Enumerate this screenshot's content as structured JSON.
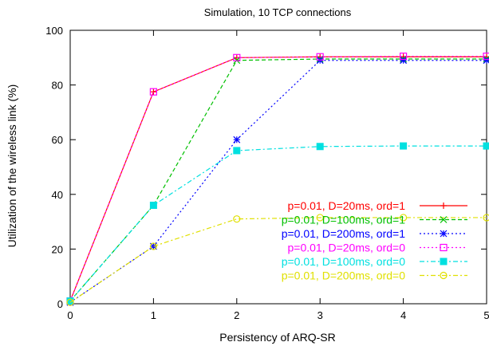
{
  "chart_data": {
    "type": "line",
    "title": "Simulation, 10 TCP connections",
    "xlabel": "Persistency of ARQ-SR",
    "ylabel": "Utilization of the wireless link (%)",
    "xlim": [
      0,
      5
    ],
    "ylim": [
      0,
      100
    ],
    "xticks": [
      0,
      1,
      2,
      3,
      4,
      5
    ],
    "yticks": [
      0,
      20,
      40,
      60,
      80,
      100
    ],
    "grid": false,
    "legend_position": "bottom-right",
    "x": [
      0,
      1,
      2,
      3,
      4,
      5
    ],
    "series": [
      {
        "name": "p=0.01, D=20ms, ord=1",
        "values": [
          1,
          77.5,
          90,
          90.3,
          90.3,
          90.3
        ],
        "color": "#ff0000",
        "dash": "solid",
        "marker": "plus"
      },
      {
        "name": "p=0.01, D=100ms, ord=1",
        "values": [
          1,
          36,
          89,
          89.5,
          89.5,
          89.5
        ],
        "color": "#00c000",
        "dash": "dashed",
        "marker": "x"
      },
      {
        "name": "p=0.01, D=200ms, ord=1",
        "values": [
          0.5,
          21,
          60,
          89,
          89,
          89
        ],
        "color": "#0000ff",
        "dash": "dotted",
        "marker": "star"
      },
      {
        "name": "p=0.01, D=20ms, ord=0",
        "values": [
          1,
          77.5,
          90,
          90.3,
          90.5,
          90.5
        ],
        "color": "#ff00ff",
        "dash": "dotted",
        "marker": "square-open"
      },
      {
        "name": "p=0.01, D=100ms, ord=0",
        "values": [
          1,
          36,
          56,
          57.5,
          57.7,
          57.7
        ],
        "color": "#00e0e0",
        "dash": "dashdot",
        "marker": "square-filled"
      },
      {
        "name": "p=0.01, D=200ms, ord=0",
        "values": [
          0.5,
          21,
          31,
          31.5,
          31.5,
          31.5
        ],
        "color": "#e0e000",
        "dash": "dashdot",
        "marker": "circle-open"
      }
    ]
  }
}
